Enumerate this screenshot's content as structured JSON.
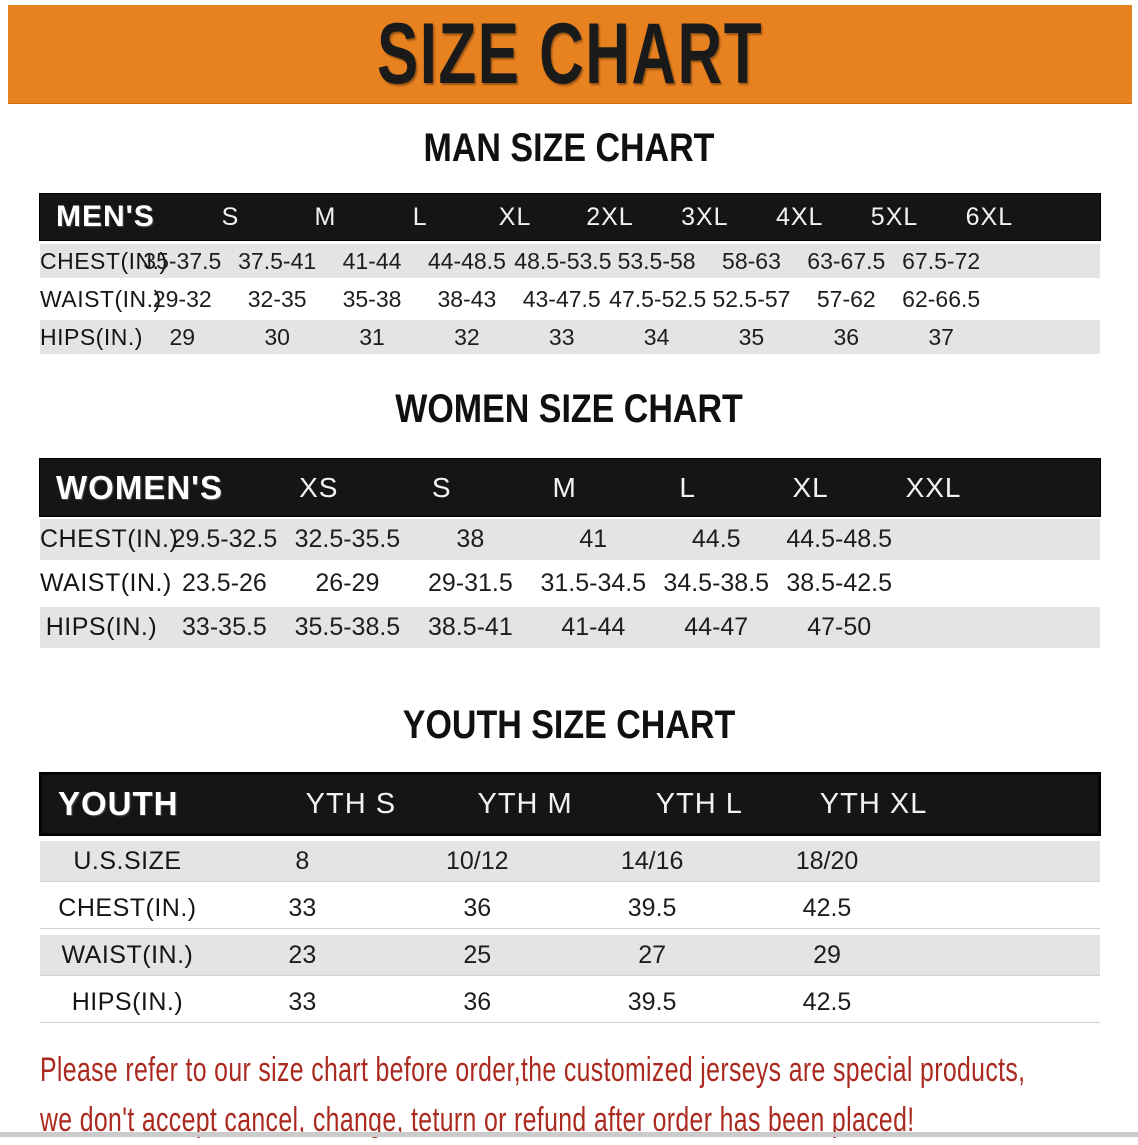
{
  "banner": {
    "title": "SIZE CHART",
    "bg_color": "#E8811F",
    "text_color": "#1A1A1A"
  },
  "chart_data": [
    {
      "type": "table",
      "title": "MAN SIZE CHART",
      "header_label": "MEN'S",
      "columns": [
        "S",
        "M",
        "L",
        "XL",
        "2XL",
        "3XL",
        "4XL",
        "5XL",
        "6XL"
      ],
      "rows": [
        {
          "label": "CHEST(IN.)",
          "values": [
            "35-37.5",
            "37.5-41",
            "41-44",
            "44-48.5",
            "48.5-53.5",
            "53.5-58",
            "58-63",
            "63-67.5",
            "67.5-72"
          ]
        },
        {
          "label": "WAIST(IN.)",
          "values": [
            "29-32",
            "32-35",
            "35-38",
            "38-43",
            "43-47.5",
            "47.5-52.5",
            "52.5-57",
            "57-62",
            "62-66.5"
          ]
        },
        {
          "label": "HIPS(IN.)",
          "values": [
            "29",
            "30",
            "31",
            "32",
            "33",
            "34",
            "35",
            "36",
            "37"
          ]
        }
      ],
      "header_bg": "#151515",
      "alt_row_bg": "#E4E4E4"
    },
    {
      "type": "table",
      "title": "WOMEN SIZE CHART",
      "header_label": "WOMEN'S",
      "columns": [
        "XS",
        "S",
        "M",
        "L",
        "XL",
        "XXL"
      ],
      "rows": [
        {
          "label": "CHEST(IN.)",
          "values": [
            "29.5-32.5",
            "32.5-35.5",
            "38",
            "41",
            "44.5",
            "44.5-48.5"
          ]
        },
        {
          "label": "WAIST(IN.)",
          "values": [
            "23.5-26",
            "26-29",
            "29-31.5",
            "31.5-34.5",
            "34.5-38.5",
            "38.5-42.5"
          ]
        },
        {
          "label": "HIPS(IN.)",
          "values": [
            "33-35.5",
            "35.5-38.5",
            "38.5-41",
            "41-44",
            "44-47",
            "47-50"
          ]
        }
      ],
      "header_bg": "#151515",
      "alt_row_bg": "#E4E4E4"
    },
    {
      "type": "table",
      "title": "YOUTH SIZE CHART",
      "header_label": "YOUTH",
      "columns": [
        "YTH S",
        "YTH M",
        "YTH L",
        "YTH XL"
      ],
      "rows": [
        {
          "label": "U.S.SIZE",
          "values": [
            "8",
            "10/12",
            "14/16",
            "18/20"
          ]
        },
        {
          "label": "CHEST(IN.)",
          "values": [
            "33",
            "36",
            "39.5",
            "42.5"
          ]
        },
        {
          "label": "WAIST(IN.)",
          "values": [
            "23",
            "25",
            "27",
            "29"
          ]
        },
        {
          "label": "HIPS(IN.)",
          "values": [
            "33",
            "36",
            "39.5",
            "42.5"
          ]
        }
      ],
      "header_bg": "#151515",
      "alt_row_bg": "#E4E4E4"
    }
  ],
  "footer": {
    "line1": "Please refer to our size chart before order,the customized jerseys are special products,",
    "line2": "we don't accept cancel, change, teturn or refund after order has been placed!",
    "text_color": "#AB2A1F"
  }
}
